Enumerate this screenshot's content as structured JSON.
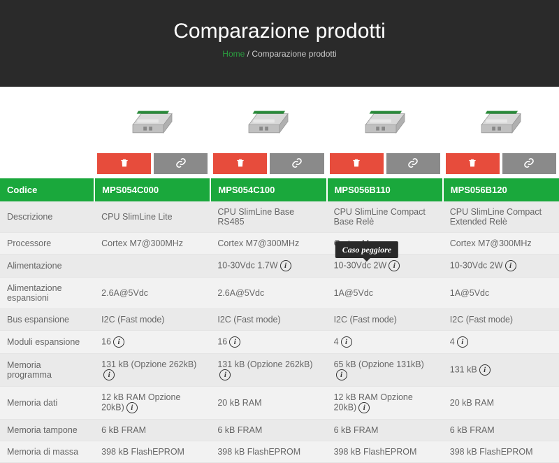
{
  "header": {
    "title": "Comparazione prodotti",
    "breadcrumb_home": "Home",
    "breadcrumb_sep": " / ",
    "breadcrumb_current": "Comparazione prodotti"
  },
  "tooltip": {
    "text": "Caso peggiore"
  },
  "codice_label": "Codice",
  "products": [
    {
      "code": "MPS054C000"
    },
    {
      "code": "MPS054C100"
    },
    {
      "code": "MPS056B110"
    },
    {
      "code": "MPS056B120"
    }
  ],
  "rows": [
    {
      "label": "Descrizione",
      "cells": [
        {
          "text": "CPU SlimLine Lite"
        },
        {
          "text": "CPU SlimLine Base RS485"
        },
        {
          "text": "CPU SlimLine Compact Base Relè"
        },
        {
          "text": "CPU SlimLine Compact Extended Relè"
        }
      ]
    },
    {
      "label": "Processore",
      "cells": [
        {
          "text": "Cortex M7@300MHz"
        },
        {
          "text": "Cortex M7@300MHz"
        },
        {
          "text": "Cortex M7@300MHz",
          "truncated": "Cortex M"
        },
        {
          "text": "Cortex M7@300MHz"
        }
      ]
    },
    {
      "label": "Alimentazione",
      "cells": [
        {
          "text": ""
        },
        {
          "text": "10-30Vdc 1.7W",
          "info": true
        },
        {
          "text": "10-30Vdc 2W",
          "info": true,
          "tooltip": true
        },
        {
          "text": "10-30Vdc 2W",
          "info": true
        }
      ]
    },
    {
      "label": "Alimentazione espansioni",
      "cells": [
        {
          "text": "2.6A@5Vdc"
        },
        {
          "text": "2.6A@5Vdc"
        },
        {
          "text": "1A@5Vdc"
        },
        {
          "text": "1A@5Vdc"
        }
      ]
    },
    {
      "label": "Bus espansione",
      "cells": [
        {
          "text": "I2C (Fast mode)"
        },
        {
          "text": "I2C (Fast mode)"
        },
        {
          "text": "I2C (Fast mode)"
        },
        {
          "text": "I2C (Fast mode)"
        }
      ]
    },
    {
      "label": "Moduli espansione",
      "cells": [
        {
          "text": "16",
          "info": true
        },
        {
          "text": "16",
          "info": true
        },
        {
          "text": "4",
          "info": true
        },
        {
          "text": "4",
          "info": true
        }
      ]
    },
    {
      "label": "Memoria programma",
      "cells": [
        {
          "text": "131 kB (Opzione 262kB)",
          "info": true
        },
        {
          "text": "131 kB (Opzione 262kB)",
          "info": true
        },
        {
          "text": "65 kB (Opzione 131kB)",
          "info": true
        },
        {
          "text": "131 kB",
          "info": true
        }
      ]
    },
    {
      "label": "Memoria dati",
      "cells": [
        {
          "text": "12 kB RAM Opzione 20kB)",
          "info": true
        },
        {
          "text": "20 kB RAM"
        },
        {
          "text": "12 kB RAM Opzione 20kB)",
          "info": true
        },
        {
          "text": "20 kB RAM"
        }
      ]
    },
    {
      "label": "Memoria tampone",
      "cells": [
        {
          "text": "6 kB FRAM"
        },
        {
          "text": "6 kB FRAM"
        },
        {
          "text": "6 kB FRAM"
        },
        {
          "text": "6 kB FRAM"
        }
      ]
    },
    {
      "label": "Memoria di massa",
      "cells": [
        {
          "text": "398 kB FlashEPROM"
        },
        {
          "text": "398 kB FlashEPROM"
        },
        {
          "text": "398 kB FlashEPROM"
        },
        {
          "text": "398 kB FlashEPROM"
        }
      ]
    }
  ],
  "colors": {
    "header_bg": "#2a2a2a",
    "accent_green": "#1aa83c",
    "link_green": "#2a9d3f",
    "btn_delete": "#e74c3c",
    "btn_link": "#8a8a8a",
    "row_odd": "#f2f2f2",
    "row_even": "#eaeaea"
  }
}
